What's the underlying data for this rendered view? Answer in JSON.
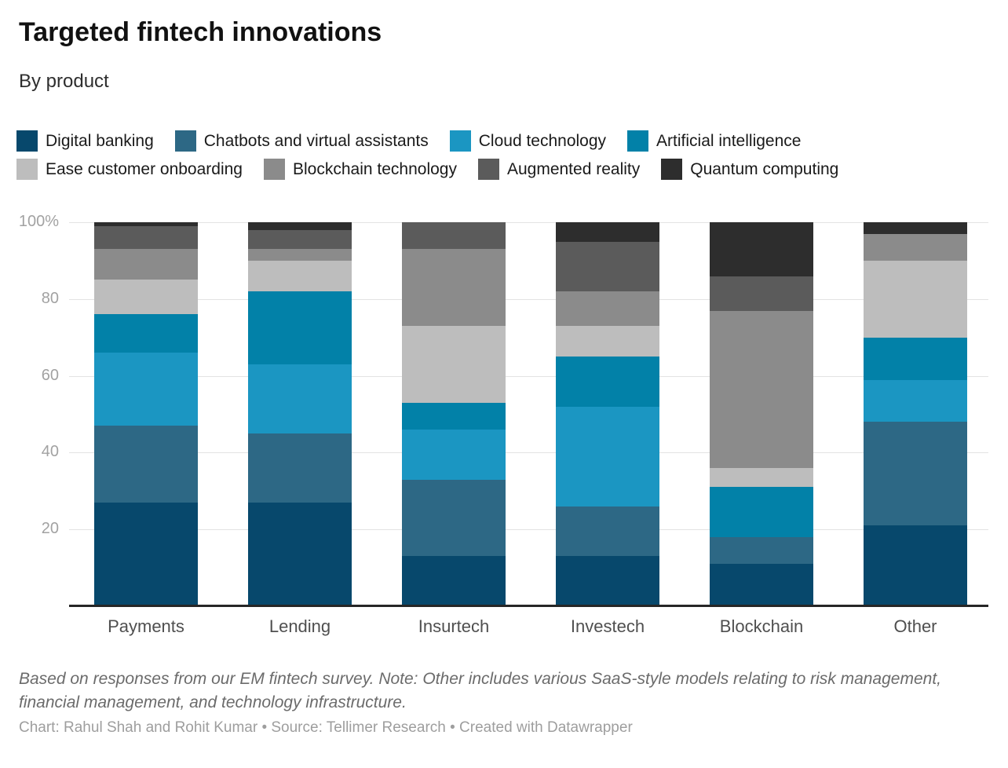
{
  "header": {
    "title": "Targeted fintech innovations",
    "subtitle": "By product"
  },
  "chart_data": {
    "type": "bar",
    "variant": "100%-stacked-column",
    "unit": "%",
    "title": "Targeted fintech innovations",
    "subtitle": "By product",
    "categories": [
      "Payments",
      "Lending",
      "Insurtech",
      "Investech",
      "Blockchain",
      "Other"
    ],
    "series": [
      {
        "name": "Digital banking",
        "color": "#07486c",
        "values": [
          27,
          27,
          13,
          13,
          11,
          21
        ]
      },
      {
        "name": "Chatbots and virtual assistants",
        "color": "#2d6885",
        "values": [
          20,
          18,
          20,
          13,
          7,
          27
        ]
      },
      {
        "name": "Cloud technology",
        "color": "#1b96c2",
        "values": [
          19,
          18,
          13,
          26,
          0,
          11
        ]
      },
      {
        "name": "Artificial intelligence",
        "color": "#0281a8",
        "values": [
          10,
          19,
          7,
          13,
          13,
          11
        ]
      },
      {
        "name": "Ease customer onboarding",
        "color": "#bdbdbd",
        "values": [
          9,
          8,
          20,
          8,
          5,
          20
        ]
      },
      {
        "name": "Blockchain technology",
        "color": "#8b8b8b",
        "values": [
          8,
          3,
          20,
          9,
          41,
          7
        ]
      },
      {
        "name": "Augmented reality",
        "color": "#5b5b5b",
        "values": [
          6,
          5,
          7,
          13,
          9,
          0
        ]
      },
      {
        "name": "Quantum computing",
        "color": "#2d2d2d",
        "values": [
          1,
          2,
          0,
          5,
          14,
          3
        ]
      }
    ],
    "y_axis": {
      "min": 0,
      "max": 100,
      "grid": true,
      "ticks": [
        {
          "value": 100,
          "label": "100%"
        },
        {
          "value": 80,
          "label": "80"
        },
        {
          "value": 60,
          "label": "60"
        },
        {
          "value": 40,
          "label": "40"
        },
        {
          "value": 20,
          "label": "20"
        }
      ]
    },
    "legend": {
      "position": "top",
      "items_per_row": 4
    },
    "stacking_order_bottom_to_top": [
      "Digital banking",
      "Chatbots and virtual assistants",
      "Cloud technology",
      "Artificial intelligence",
      "Ease customer onboarding",
      "Blockchain technology",
      "Augmented reality",
      "Quantum computing"
    ]
  },
  "footer": {
    "note": "Based on responses from our EM fintech survey. Note: Other includes various SaaS-style models relating to risk management, financial management, and technology infrastructure.",
    "credit": "Chart: Rahul Shah and Rohit Kumar • Source: Tellimer Research • Created with Datawrapper"
  },
  "colors": {
    "grid": "#e3e3e3",
    "axis_line": "#262626",
    "y_tick_text": "#a2a2a2",
    "x_label_text": "#4f4f4f",
    "background": "#ffffff"
  }
}
